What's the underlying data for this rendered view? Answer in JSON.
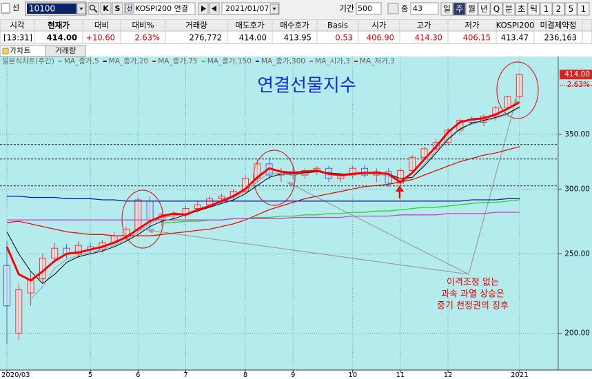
{
  "toolbar": {
    "market": "선",
    "code": "10100",
    "buttons": [
      "K",
      "S"
    ],
    "badge": "선",
    "name": "KOSPI200 연결",
    "date": "2021/01/07",
    "period_label": "기간",
    "period": "500",
    "zoom_label": "중",
    "zoom": "43",
    "periods": [
      "일",
      "주",
      "월",
      "년",
      "Q",
      "분",
      "초",
      "틱",
      "1",
      "2",
      "5",
      "1"
    ]
  },
  "quote": {
    "headers": [
      "시각",
      "현재가",
      "대비",
      "대비%",
      "거래량",
      "매도호가",
      "매수호가",
      "Basis",
      "시가",
      "고가",
      "저가",
      "KOSPI200",
      "미결제약정"
    ],
    "values": [
      "[13:31]",
      "414.00",
      "+10.60",
      "2.63%",
      "276,772",
      "414.00",
      "413.95",
      "0.53",
      "406.90",
      "414.30",
      "406.15",
      "413.47",
      "236,163"
    ]
  },
  "tabs": [
    "가차트",
    "거래량"
  ],
  "chart_data": {
    "type": "candlestick",
    "title": "연결선물지수",
    "legend_title": "일본식차트(주간)",
    "annotation": [
      "이격조정 없는",
      "과속 과열 상승은",
      "중기 천정권의 징후"
    ],
    "categories": [
      "2020/03",
      null,
      null,
      null,
      null,
      null,
      null,
      "5",
      null,
      null,
      null,
      "6",
      null,
      null,
      null,
      "7",
      null,
      null,
      null,
      null,
      "8",
      null,
      null,
      null,
      "9",
      null,
      null,
      null,
      null,
      "10",
      null,
      null,
      null,
      "11",
      null,
      null,
      null,
      "12",
      null,
      null,
      null,
      null,
      null,
      "2021"
    ],
    "open": [
      242,
      200,
      224,
      233,
      247,
      254,
      250,
      255,
      253,
      258,
      263,
      268,
      290,
      275,
      279,
      280,
      284,
      287,
      292,
      294,
      298,
      309,
      322,
      312,
      315,
      312,
      316,
      318,
      309,
      312,
      318,
      312,
      315,
      305,
      316,
      328,
      336,
      342,
      354,
      364,
      362,
      368,
      377,
      389
    ],
    "high": [
      259,
      230,
      238,
      250,
      258,
      257,
      259,
      258,
      260,
      266,
      270,
      293,
      294,
      281,
      282,
      286,
      290,
      294,
      296,
      300,
      312,
      326,
      328,
      318,
      320,
      318,
      320,
      320,
      314,
      320,
      321,
      318,
      318,
      318,
      330,
      338,
      345,
      356,
      366,
      368,
      370,
      379,
      390,
      414.3
    ],
    "low": [
      194,
      196,
      216,
      230,
      244,
      247,
      248,
      250,
      251,
      256,
      260,
      266,
      268,
      270,
      273,
      276,
      281,
      285,
      288,
      292,
      296,
      306,
      308,
      306,
      308,
      309,
      312,
      306,
      306,
      309,
      310,
      306,
      302,
      300,
      314,
      326,
      334,
      340,
      350,
      360,
      358,
      364,
      375,
      386
    ],
    "close": [
      216,
      226,
      232,
      247,
      254,
      250,
      256,
      253,
      258,
      263,
      268,
      291,
      275,
      279,
      280,
      284,
      287,
      292,
      294,
      298,
      309,
      322,
      312,
      315,
      312,
      316,
      318,
      309,
      312,
      318,
      312,
      315,
      305,
      316,
      328,
      336,
      342,
      354,
      364,
      362,
      368,
      377,
      389,
      414
    ],
    "up_color": "#e83a3a",
    "down_color": "#4a68c0",
    "series": [
      {
        "name": "MA_종가,5",
        "color": "#8a9bb0",
        "width": 1,
        "values": [
          null,
          null,
          220,
          228,
          240,
          246,
          249,
          251,
          253,
          256,
          260,
          266,
          272,
          277,
          278,
          280,
          283,
          286,
          289,
          293,
          298,
          306,
          314,
          313,
          312,
          313,
          315,
          313,
          311,
          312,
          313,
          313,
          311,
          306,
          310,
          322,
          334,
          346,
          356,
          360,
          363,
          366,
          370,
          377
        ]
      },
      {
        "name": "MA_종가,20",
        "color": "#000000",
        "width": 1,
        "values": [
          266,
          250,
          238,
          230,
          236,
          244,
          248,
          250,
          252,
          255,
          259,
          264,
          270,
          274,
          276,
          279,
          282,
          285,
          288,
          291,
          296,
          303,
          310,
          313,
          313,
          314,
          315,
          314,
          313,
          313,
          314,
          314,
          313,
          309,
          310,
          320,
          332,
          345,
          355,
          361,
          364,
          367,
          371,
          378
        ]
      },
      {
        "name": "MA_종가,75",
        "color": "#e01010",
        "width": 1.3,
        "values": [
          273,
          274,
          272,
          270,
          268,
          266,
          265,
          264,
          264,
          263,
          263,
          263,
          263,
          264,
          265,
          266,
          267,
          268,
          270,
          272,
          275,
          279,
          283,
          286,
          289,
          292,
          294,
          296,
          298,
          300,
          302,
          303,
          304,
          306,
          308,
          312,
          316,
          320,
          324,
          327,
          330,
          332,
          335,
          338
        ]
      },
      {
        "name": "MA_종가,150",
        "color": "#22d822",
        "width": 1.3,
        "values": [
          null,
          null,
          null,
          null,
          null,
          null,
          null,
          null,
          null,
          null,
          null,
          null,
          null,
          273,
          273,
          274,
          274,
          275,
          275,
          276,
          276,
          277,
          277,
          278,
          278,
          279,
          279,
          280,
          280,
          281,
          281,
          282,
          282,
          283,
          284,
          285,
          285,
          286,
          287,
          288,
          289,
          289,
          290,
          291
        ]
      },
      {
        "name": "MA_종가,300",
        "color": "#1a1ab8",
        "width": 1.3,
        "values": [
          294,
          294,
          293,
          293,
          293,
          292,
          292,
          292,
          291,
          291,
          290,
          290,
          290,
          290,
          290,
          290,
          290,
          290,
          290,
          290,
          290,
          290,
          290,
          290,
          290,
          290,
          290,
          290,
          290,
          290,
          290,
          290,
          290,
          290,
          290,
          290,
          290,
          290,
          290,
          291,
          291,
          291,
          292,
          292
        ]
      },
      {
        "name": "MA_시가,3",
        "color": "#cc40cc",
        "width": 1.3,
        "values": [
          275,
          275,
          275,
          275,
          275,
          275,
          275,
          275,
          275,
          275,
          275,
          275,
          275,
          275,
          275,
          275,
          275,
          275,
          275,
          276,
          276,
          276,
          276,
          276,
          277,
          277,
          277,
          277,
          277,
          278,
          278,
          278,
          278,
          279,
          279,
          279,
          279,
          280,
          280,
          280,
          280,
          281,
          281,
          281
        ]
      },
      {
        "name": "MA_저가,3",
        "color": "#ff0000",
        "width": 3,
        "values": [
          255,
          236,
          232,
          238,
          245,
          250,
          251,
          253,
          255,
          258,
          262,
          268,
          274,
          278,
          280,
          279,
          283,
          286,
          290,
          294,
          300,
          310,
          318,
          315,
          314,
          315,
          316,
          313,
          312,
          313,
          314,
          314,
          313,
          306,
          314,
          326,
          338,
          352,
          362,
          365,
          366,
          370,
          376,
          383
        ]
      }
    ],
    "hlines": [
      340,
      326.4,
      302.7
    ],
    "price_tag": {
      "value": 414,
      "label": "414.00"
    },
    "change_tag": "2.63%",
    "ylim": [
      181,
      433
    ],
    "log_scale": true,
    "grid": true,
    "yticks": [
      {
        "value": 200,
        "label": "200.00"
      },
      {
        "value": 250,
        "label": "250.00"
      },
      {
        "value": 300,
        "label": "300.00"
      },
      {
        "value": 350,
        "label": "350.00"
      }
    ]
  }
}
